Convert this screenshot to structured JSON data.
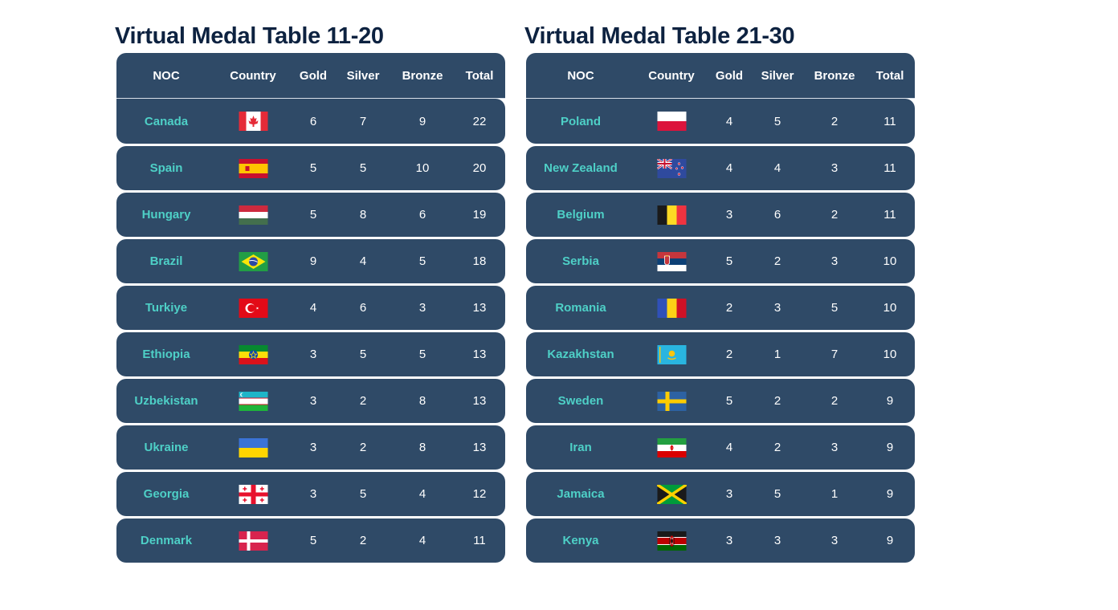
{
  "tables": [
    {
      "title": "Virtual Medal Table 11-20",
      "headers": {
        "noc": "NOC",
        "country": "Country",
        "gold": "Gold",
        "silver": "Silver",
        "bronze": "Bronze",
        "total": "Total"
      },
      "rows": [
        {
          "noc": "Canada",
          "flag": "canada-flag-icon",
          "gold": "6",
          "silver": "7",
          "bronze": "9",
          "total": "22"
        },
        {
          "noc": "Spain",
          "flag": "spain-flag-icon",
          "gold": "5",
          "silver": "5",
          "bronze": "10",
          "total": "20"
        },
        {
          "noc": "Hungary",
          "flag": "hungary-flag-icon",
          "gold": "5",
          "silver": "8",
          "bronze": "6",
          "total": "19"
        },
        {
          "noc": "Brazil",
          "flag": "brazil-flag-icon",
          "gold": "9",
          "silver": "4",
          "bronze": "5",
          "total": "18"
        },
        {
          "noc": "Turkiye",
          "flag": "turkiye-flag-icon",
          "gold": "4",
          "silver": "6",
          "bronze": "3",
          "total": "13"
        },
        {
          "noc": "Ethiopia",
          "flag": "ethiopia-flag-icon",
          "gold": "3",
          "silver": "5",
          "bronze": "5",
          "total": "13"
        },
        {
          "noc": "Uzbekistan",
          "flag": "uzbekistan-flag-icon",
          "gold": "3",
          "silver": "2",
          "bronze": "8",
          "total": "13"
        },
        {
          "noc": "Ukraine",
          "flag": "ukraine-flag-icon",
          "gold": "3",
          "silver": "2",
          "bronze": "8",
          "total": "13"
        },
        {
          "noc": "Georgia",
          "flag": "georgia-flag-icon",
          "gold": "3",
          "silver": "5",
          "bronze": "4",
          "total": "12"
        },
        {
          "noc": "Denmark",
          "flag": "denmark-flag-icon",
          "gold": "5",
          "silver": "2",
          "bronze": "4",
          "total": "11"
        }
      ]
    },
    {
      "title": "Virtual Medal Table 21-30",
      "headers": {
        "noc": "NOC",
        "country": "Country",
        "gold": "Gold",
        "silver": "Silver",
        "bronze": "Bronze",
        "total": "Total"
      },
      "rows": [
        {
          "noc": "Poland",
          "flag": "poland-flag-icon",
          "gold": "4",
          "silver": "5",
          "bronze": "2",
          "total": "11"
        },
        {
          "noc": "New Zealand",
          "flag": "new-zealand-flag-icon",
          "gold": "4",
          "silver": "4",
          "bronze": "3",
          "total": "11"
        },
        {
          "noc": "Belgium",
          "flag": "belgium-flag-icon",
          "gold": "3",
          "silver": "6",
          "bronze": "2",
          "total": "11"
        },
        {
          "noc": "Serbia",
          "flag": "serbia-flag-icon",
          "gold": "5",
          "silver": "2",
          "bronze": "3",
          "total": "10"
        },
        {
          "noc": "Romania",
          "flag": "romania-flag-icon",
          "gold": "2",
          "silver": "3",
          "bronze": "5",
          "total": "10"
        },
        {
          "noc": "Kazakhstan",
          "flag": "kazakhstan-flag-icon",
          "gold": "2",
          "silver": "1",
          "bronze": "7",
          "total": "10"
        },
        {
          "noc": "Sweden",
          "flag": "sweden-flag-icon",
          "gold": "5",
          "silver": "2",
          "bronze": "2",
          "total": "9"
        },
        {
          "noc": "Iran",
          "flag": "iran-flag-icon",
          "gold": "4",
          "silver": "2",
          "bronze": "3",
          "total": "9"
        },
        {
          "noc": "Jamaica",
          "flag": "jamaica-flag-icon",
          "gold": "3",
          "silver": "5",
          "bronze": "1",
          "total": "9"
        },
        {
          "noc": "Kenya",
          "flag": "kenya-flag-icon",
          "gold": "3",
          "silver": "3",
          "bronze": "3",
          "total": "9"
        }
      ]
    }
  ],
  "colors": {
    "title": "#0d2240",
    "row_bg": "#2f4a67",
    "noc_text": "#4ed0c7",
    "number_text": "#ffffff"
  }
}
